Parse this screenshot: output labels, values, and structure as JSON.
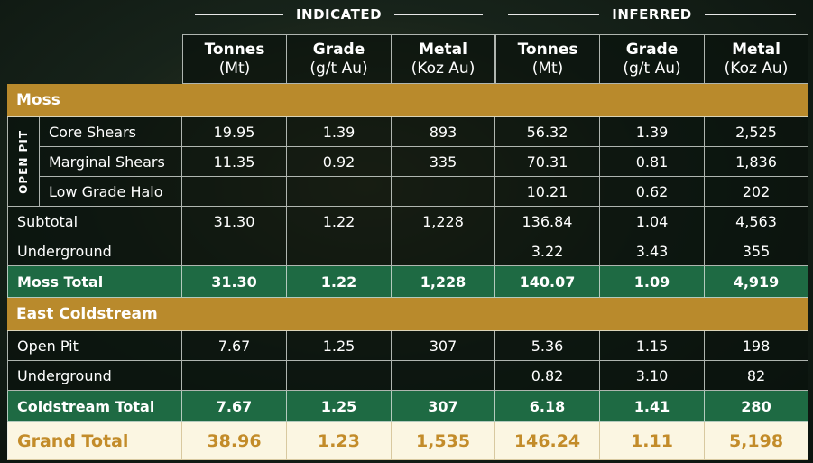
{
  "header": {
    "groups": [
      "INDICATED",
      "INFERRED"
    ],
    "columns": [
      {
        "name": "Tonnes",
        "unit": "(Mt)"
      },
      {
        "name": "Grade",
        "unit": "(g/t Au)"
      },
      {
        "name": "Metal",
        "unit": "(Koz Au)"
      },
      {
        "name": "Tonnes",
        "unit": "(Mt)"
      },
      {
        "name": "Grade",
        "unit": "(g/t Au)"
      },
      {
        "name": "Metal",
        "unit": "(Koz Au)"
      }
    ]
  },
  "sections": [
    {
      "title": "Moss",
      "open_pit": {
        "label": "OPEN PIT",
        "rows": [
          {
            "label": "Core Shears",
            "values": [
              "19.95",
              "1.39",
              "893",
              "56.32",
              "1.39",
              "2,525"
            ]
          },
          {
            "label": "Marginal Shears",
            "values": [
              "11.35",
              "0.92",
              "335",
              "70.31",
              "0.81",
              "1,836"
            ]
          },
          {
            "label": "Low Grade Halo",
            "values": [
              null,
              null,
              null,
              "10.21",
              "0.62",
              "202"
            ]
          }
        ]
      },
      "rows": [
        {
          "label": "Subtotal",
          "values": [
            "31.30",
            "1.22",
            "1,228",
            "136.84",
            "1.04",
            "4,563"
          ]
        },
        {
          "label": "Underground",
          "values": [
            null,
            null,
            null,
            "3.22",
            "3.43",
            "355"
          ]
        }
      ],
      "total": {
        "label": "Moss Total",
        "values": [
          "31.30",
          "1.22",
          "1,228",
          "140.07",
          "1.09",
          "4,919"
        ]
      }
    },
    {
      "title": "East Coldstream",
      "rows": [
        {
          "label": "Open Pit",
          "values": [
            "7.67",
            "1.25",
            "307",
            "5.36",
            "1.15",
            "198"
          ]
        },
        {
          "label": "Underground",
          "values": [
            null,
            null,
            null,
            "0.82",
            "3.10",
            "82"
          ]
        }
      ],
      "total": {
        "label": "Coldstream Total",
        "values": [
          "7.67",
          "1.25",
          "307",
          "6.18",
          "1.41",
          "280"
        ]
      }
    }
  ],
  "grand_total": {
    "label": "Grand Total",
    "values": [
      "38.96",
      "1.23",
      "1,535",
      "146.24",
      "1.11",
      "5,198"
    ]
  }
}
